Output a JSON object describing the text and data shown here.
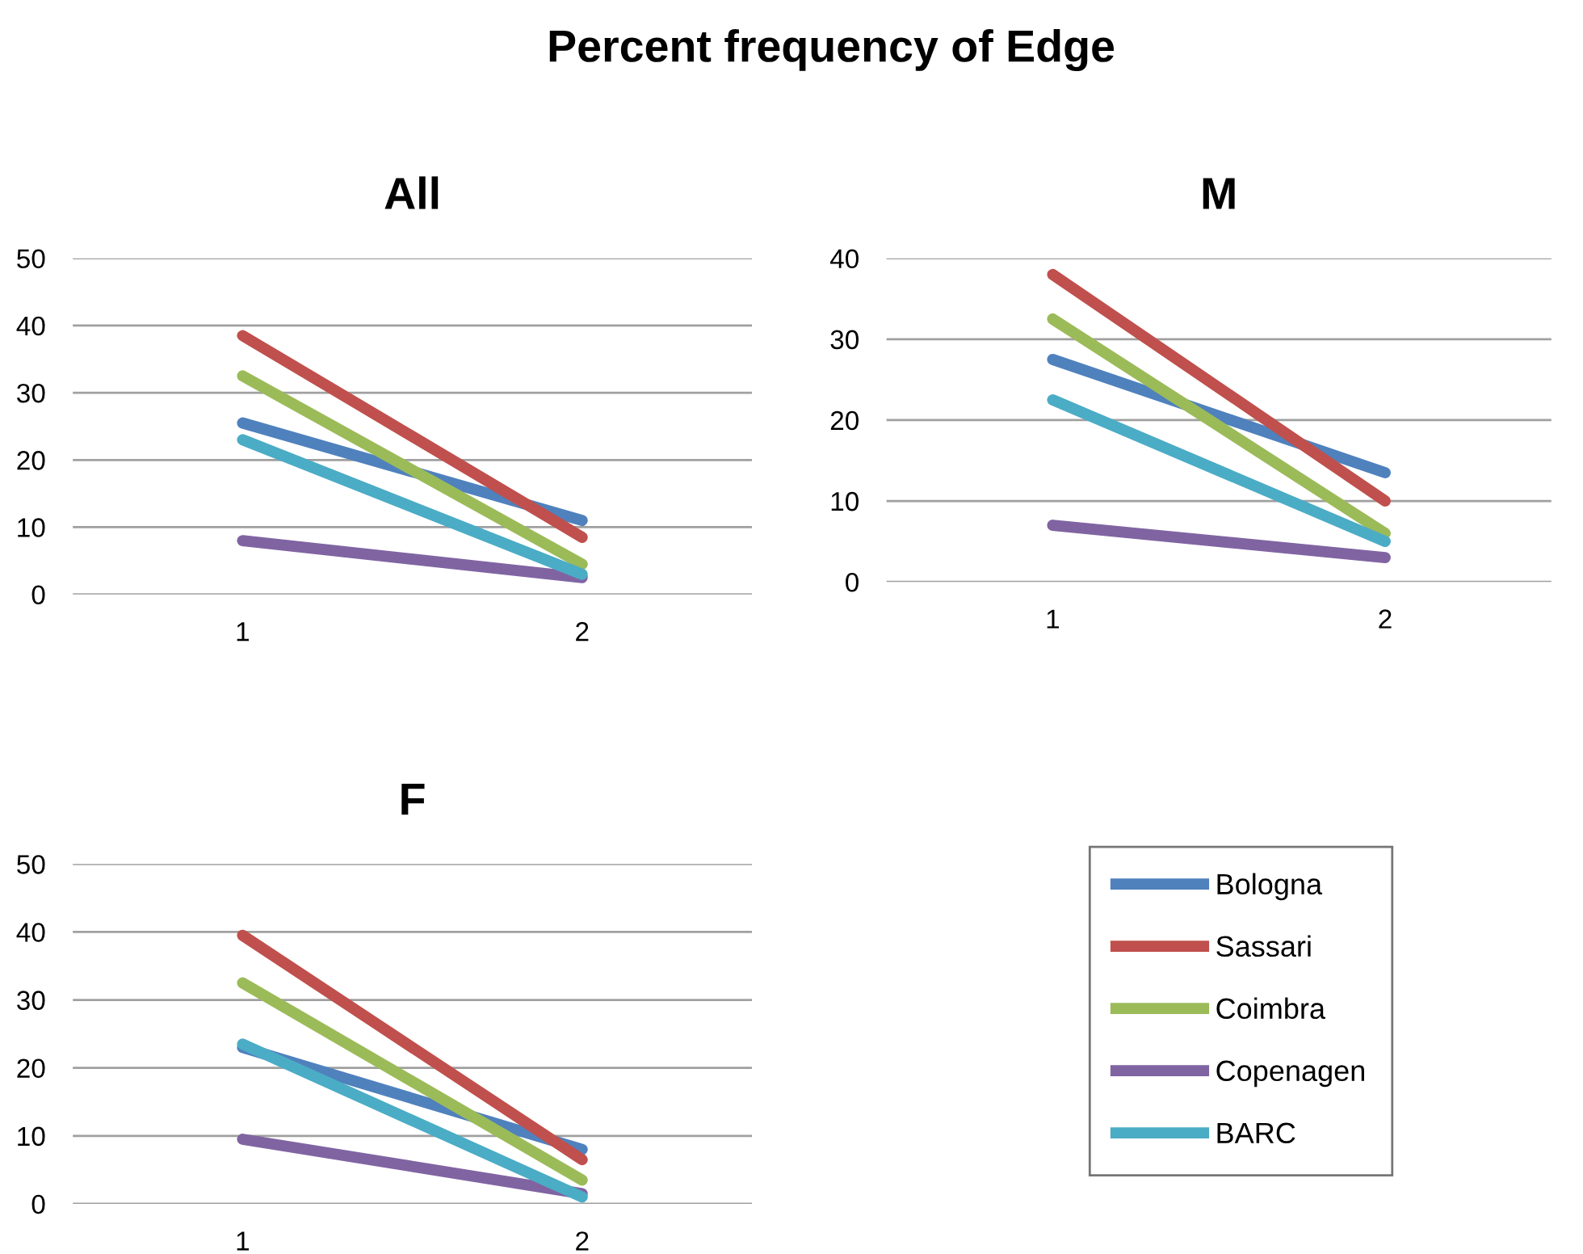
{
  "chart_data": [
    {
      "type": "line",
      "title": "All",
      "annotations": [
        "Percent frequency of Edge"
      ],
      "categories": [
        "1",
        "2"
      ],
      "ylim": [
        0,
        50
      ],
      "yticks": [
        0,
        10,
        20,
        30,
        40,
        50
      ],
      "grid": "y",
      "line_style": "solid",
      "marker": "none",
      "legend": "bottom right",
      "series": [
        {
          "name": "Bologna",
          "color": "#4f81bd",
          "values": [
            25.5,
            11
          ]
        },
        {
          "name": "Sassari",
          "color": "#c0504d",
          "values": [
            38.5,
            8.5
          ]
        },
        {
          "name": "Coimbra",
          "color": "#9bbb59",
          "values": [
            32.5,
            4.5
          ]
        },
        {
          "name": "Copenagen",
          "color": "#8064a2",
          "values": [
            8,
            2.5
          ]
        },
        {
          "name": "BARC",
          "color": "#4bacc6",
          "values": [
            23,
            3
          ]
        }
      ]
    },
    {
      "type": "line",
      "title": "M",
      "categories": [
        "1",
        "2"
      ],
      "ylim": [
        0,
        40
      ],
      "yticks": [
        0,
        10,
        20,
        30,
        40
      ],
      "grid": "y",
      "line_style": "solid",
      "marker": "none",
      "series": [
        {
          "color": "#4f81bd",
          "values": [
            27.5,
            13.5
          ]
        },
        {
          "color": "#c0504d",
          "values": [
            38,
            10
          ]
        },
        {
          "color": "#9bbb59",
          "values": [
            32.5,
            6
          ]
        },
        {
          "color": "#8064a2",
          "values": [
            7,
            3
          ]
        },
        {
          "color": "#4bacc6",
          "values": [
            22.5,
            5
          ]
        }
      ]
    },
    {
      "type": "line",
      "title": "F",
      "categories": [
        "1",
        "2"
      ],
      "ylim": [
        0,
        50
      ],
      "yticks": [
        0,
        10,
        20,
        30,
        40,
        50
      ],
      "grid": "y",
      "line_style": "solid",
      "marker": "none",
      "series": [
        {
          "color": "#4f81bd",
          "values": [
            23,
            8
          ]
        },
        {
          "color": "#c0504d",
          "values": [
            39.5,
            6.5
          ]
        },
        {
          "color": "#9bbb59",
          "values": [
            32.5,
            3.5
          ]
        },
        {
          "color": "#8064a2",
          "values": [
            9.5,
            1.5
          ]
        },
        {
          "color": "#4bacc6",
          "values": [
            23.5,
            1
          ]
        }
      ]
    }
  ]
}
